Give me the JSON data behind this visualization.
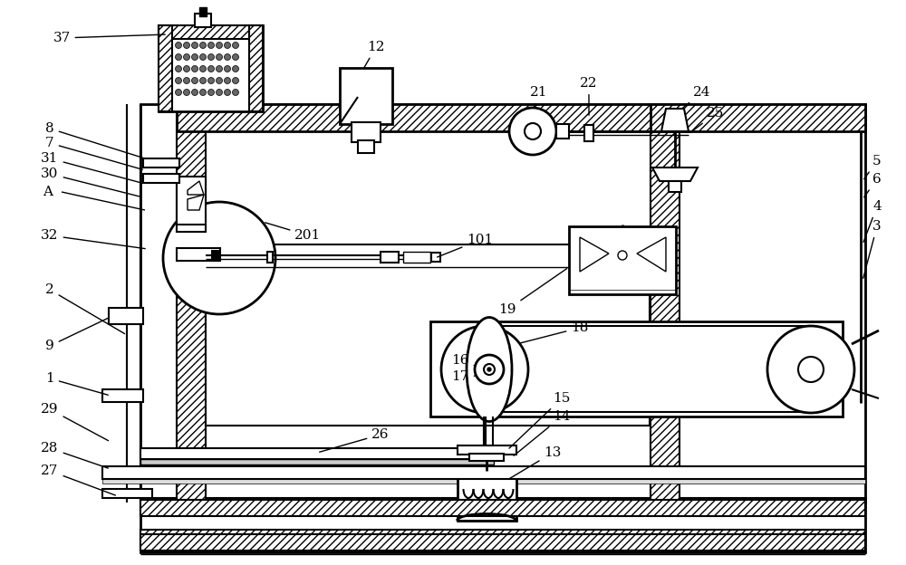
{
  "bg_color": "#ffffff",
  "line_color": "#000000",
  "fig_width": 10.0,
  "fig_height": 6.24,
  "lw_thin": 1.0,
  "lw_med": 1.5,
  "lw_thick": 2.5,
  "label_fs": 11
}
